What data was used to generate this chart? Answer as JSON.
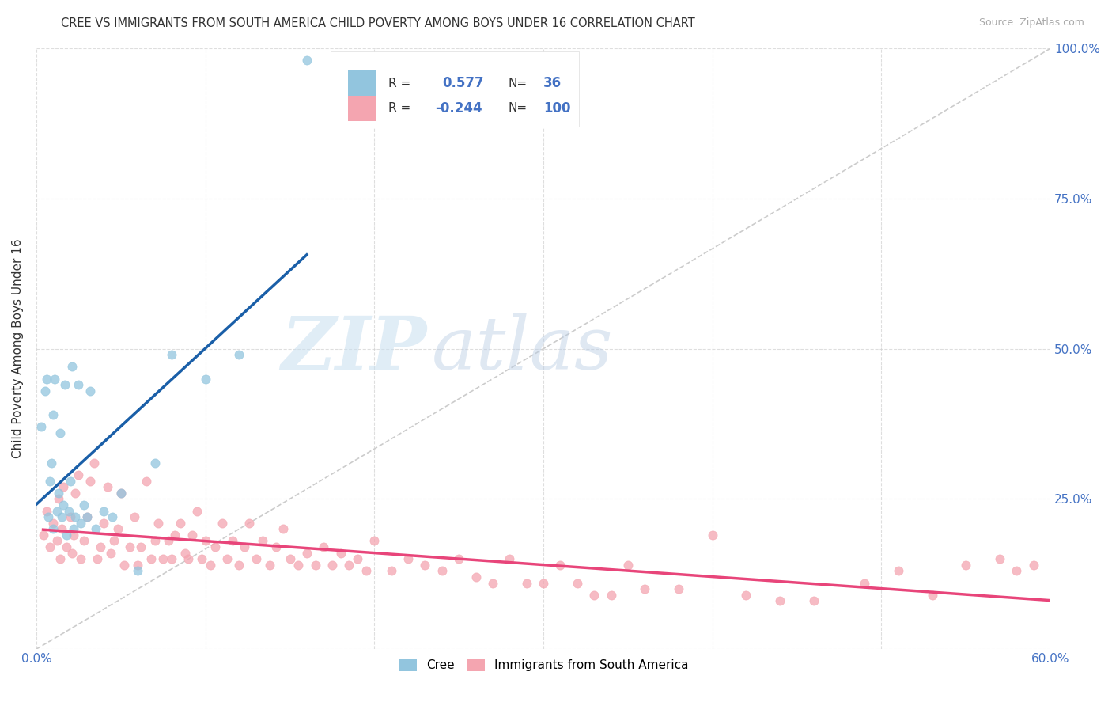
{
  "title": "CREE VS IMMIGRANTS FROM SOUTH AMERICA CHILD POVERTY AMONG BOYS UNDER 16 CORRELATION CHART",
  "source": "Source: ZipAtlas.com",
  "ylabel": "Child Poverty Among Boys Under 16",
  "xlim": [
    0.0,
    0.6
  ],
  "ylim": [
    0.0,
    1.0
  ],
  "xticks": [
    0.0,
    0.1,
    0.2,
    0.3,
    0.4,
    0.5,
    0.6
  ],
  "xticklabels": [
    "0.0%",
    "",
    "",
    "",
    "",
    "",
    "60.0%"
  ],
  "yticks": [
    0.0,
    0.25,
    0.5,
    0.75,
    1.0
  ],
  "yticklabels_right": [
    "",
    "25.0%",
    "50.0%",
    "75.0%",
    "100.0%"
  ],
  "cree_color": "#92c5de",
  "cree_edge_color": "#92c5de",
  "immigrant_color": "#f4a5b0",
  "immigrant_edge_color": "#f4a5b0",
  "cree_line_color": "#1a5fa8",
  "immigrant_line_color": "#e8457a",
  "cree_R": 0.577,
  "cree_N": 36,
  "immigrant_R": -0.244,
  "immigrant_N": 100,
  "watermark_zip": "ZIP",
  "watermark_atlas": "atlas",
  "background_color": "#ffffff",
  "grid_color": "#d0d0d0",
  "cree_points_x": [
    0.003,
    0.005,
    0.006,
    0.007,
    0.008,
    0.009,
    0.01,
    0.01,
    0.011,
    0.012,
    0.013,
    0.014,
    0.015,
    0.016,
    0.017,
    0.018,
    0.019,
    0.02,
    0.021,
    0.022,
    0.023,
    0.025,
    0.026,
    0.028,
    0.03,
    0.032,
    0.035,
    0.04,
    0.045,
    0.05,
    0.06,
    0.07,
    0.08,
    0.1,
    0.12,
    0.16
  ],
  "cree_points_y": [
    0.37,
    0.43,
    0.45,
    0.22,
    0.28,
    0.31,
    0.2,
    0.39,
    0.45,
    0.23,
    0.26,
    0.36,
    0.22,
    0.24,
    0.44,
    0.19,
    0.23,
    0.28,
    0.47,
    0.2,
    0.22,
    0.44,
    0.21,
    0.24,
    0.22,
    0.43,
    0.2,
    0.23,
    0.22,
    0.26,
    0.13,
    0.31,
    0.49,
    0.45,
    0.49,
    0.98
  ],
  "immigrant_points_x": [
    0.004,
    0.006,
    0.008,
    0.01,
    0.012,
    0.013,
    0.014,
    0.015,
    0.016,
    0.018,
    0.02,
    0.021,
    0.022,
    0.023,
    0.025,
    0.026,
    0.028,
    0.03,
    0.032,
    0.034,
    0.036,
    0.038,
    0.04,
    0.042,
    0.044,
    0.046,
    0.048,
    0.05,
    0.052,
    0.055,
    0.058,
    0.06,
    0.062,
    0.065,
    0.068,
    0.07,
    0.072,
    0.075,
    0.078,
    0.08,
    0.082,
    0.085,
    0.088,
    0.09,
    0.092,
    0.095,
    0.098,
    0.1,
    0.103,
    0.106,
    0.11,
    0.113,
    0.116,
    0.12,
    0.123,
    0.126,
    0.13,
    0.134,
    0.138,
    0.142,
    0.146,
    0.15,
    0.155,
    0.16,
    0.165,
    0.17,
    0.175,
    0.18,
    0.185,
    0.19,
    0.195,
    0.2,
    0.21,
    0.22,
    0.23,
    0.24,
    0.25,
    0.26,
    0.27,
    0.28,
    0.29,
    0.3,
    0.31,
    0.32,
    0.33,
    0.34,
    0.35,
    0.36,
    0.38,
    0.4,
    0.42,
    0.44,
    0.46,
    0.49,
    0.51,
    0.53,
    0.55,
    0.57,
    0.58,
    0.59
  ],
  "immigrant_points_y": [
    0.19,
    0.23,
    0.17,
    0.21,
    0.18,
    0.25,
    0.15,
    0.2,
    0.27,
    0.17,
    0.22,
    0.16,
    0.19,
    0.26,
    0.29,
    0.15,
    0.18,
    0.22,
    0.28,
    0.31,
    0.15,
    0.17,
    0.21,
    0.27,
    0.16,
    0.18,
    0.2,
    0.26,
    0.14,
    0.17,
    0.22,
    0.14,
    0.17,
    0.28,
    0.15,
    0.18,
    0.21,
    0.15,
    0.18,
    0.15,
    0.19,
    0.21,
    0.16,
    0.15,
    0.19,
    0.23,
    0.15,
    0.18,
    0.14,
    0.17,
    0.21,
    0.15,
    0.18,
    0.14,
    0.17,
    0.21,
    0.15,
    0.18,
    0.14,
    0.17,
    0.2,
    0.15,
    0.14,
    0.16,
    0.14,
    0.17,
    0.14,
    0.16,
    0.14,
    0.15,
    0.13,
    0.18,
    0.13,
    0.15,
    0.14,
    0.13,
    0.15,
    0.12,
    0.11,
    0.15,
    0.11,
    0.11,
    0.14,
    0.11,
    0.09,
    0.09,
    0.14,
    0.1,
    0.1,
    0.19,
    0.09,
    0.08,
    0.08,
    0.11,
    0.13,
    0.09,
    0.14,
    0.15,
    0.13,
    0.14
  ],
  "legend_title_color": "#333333",
  "legend_value_color": "#4472c4",
  "tick_color": "#4472c4"
}
